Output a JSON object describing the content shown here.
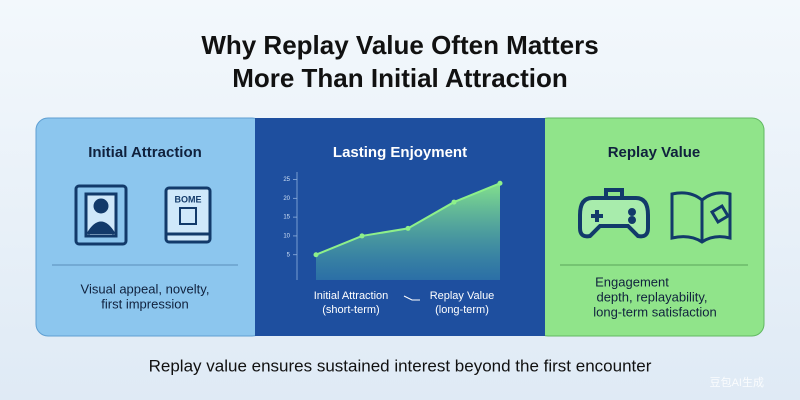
{
  "header": {
    "title_lines": [
      "Why Replay Value Often Matters",
      "More Than Initial Attraction"
    ]
  },
  "panels": [
    {
      "title": "Initial Attraction",
      "icon_text": "BOME",
      "caption_lines": [
        "Visual appeal, novelty,",
        "first impression"
      ]
    },
    {
      "title": "Lasting Enjoyment"
    },
    {
      "title": "Replay Value",
      "caption_lines": [
        "Engagement",
        "depth, replayability,",
        "long-term satisfaction"
      ]
    }
  ],
  "chart_data": {
    "type": "line",
    "categories": [
      null,
      null,
      null,
      null,
      null
    ],
    "values": [
      5,
      10,
      12,
      19,
      24
    ],
    "ylim": [
      2,
      27
    ],
    "yticks": [
      5,
      10,
      15,
      20,
      25
    ],
    "color": "#8ef08a",
    "x_start_label": [
      "Initial Attraction",
      "(short-term)"
    ],
    "x_end_label": [
      "Replay Value",
      "(long-term)"
    ]
  },
  "footer": "Replay value ensures sustained interest beyond the first encounter",
  "watermark": "豆包AI生成"
}
